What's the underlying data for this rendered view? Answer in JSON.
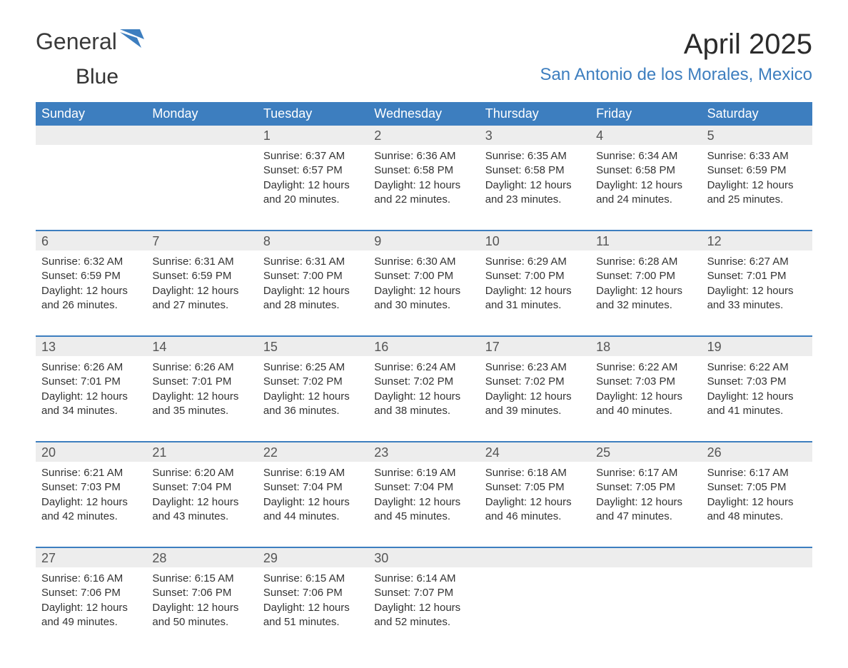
{
  "brand": {
    "part1": "General",
    "part2": "Blue",
    "text_color": "#3a3a3a",
    "accent_color": "#3d7ebf"
  },
  "title": "April 2025",
  "location": "San Antonio de los Morales, Mexico",
  "colors": {
    "header_bg": "#3d7ebf",
    "header_text": "#ffffff",
    "daynum_bg": "#ededed",
    "row_border": "#3d7ebf",
    "body_text": "#333333",
    "background": "#ffffff"
  },
  "typography": {
    "title_fontsize": 40,
    "location_fontsize": 24,
    "dow_fontsize": 18,
    "daynum_fontsize": 18,
    "cell_fontsize": 15,
    "font_family": "Arial"
  },
  "days_of_week": [
    "Sunday",
    "Monday",
    "Tuesday",
    "Wednesday",
    "Thursday",
    "Friday",
    "Saturday"
  ],
  "labels": {
    "sunrise": "Sunrise:",
    "sunset": "Sunset:",
    "daylight": "Daylight:"
  },
  "weeks": [
    {
      "cells": [
        {
          "day": "",
          "sunrise": "",
          "sunset": "",
          "daylight": ""
        },
        {
          "day": "",
          "sunrise": "",
          "sunset": "",
          "daylight": ""
        },
        {
          "day": "1",
          "sunrise": "6:37 AM",
          "sunset": "6:57 PM",
          "daylight": "12 hours and 20 minutes."
        },
        {
          "day": "2",
          "sunrise": "6:36 AM",
          "sunset": "6:58 PM",
          "daylight": "12 hours and 22 minutes."
        },
        {
          "day": "3",
          "sunrise": "6:35 AM",
          "sunset": "6:58 PM",
          "daylight": "12 hours and 23 minutes."
        },
        {
          "day": "4",
          "sunrise": "6:34 AM",
          "sunset": "6:58 PM",
          "daylight": "12 hours and 24 minutes."
        },
        {
          "day": "5",
          "sunrise": "6:33 AM",
          "sunset": "6:59 PM",
          "daylight": "12 hours and 25 minutes."
        }
      ]
    },
    {
      "cells": [
        {
          "day": "6",
          "sunrise": "6:32 AM",
          "sunset": "6:59 PM",
          "daylight": "12 hours and 26 minutes."
        },
        {
          "day": "7",
          "sunrise": "6:31 AM",
          "sunset": "6:59 PM",
          "daylight": "12 hours and 27 minutes."
        },
        {
          "day": "8",
          "sunrise": "6:31 AM",
          "sunset": "7:00 PM",
          "daylight": "12 hours and 28 minutes."
        },
        {
          "day": "9",
          "sunrise": "6:30 AM",
          "sunset": "7:00 PM",
          "daylight": "12 hours and 30 minutes."
        },
        {
          "day": "10",
          "sunrise": "6:29 AM",
          "sunset": "7:00 PM",
          "daylight": "12 hours and 31 minutes."
        },
        {
          "day": "11",
          "sunrise": "6:28 AM",
          "sunset": "7:00 PM",
          "daylight": "12 hours and 32 minutes."
        },
        {
          "day": "12",
          "sunrise": "6:27 AM",
          "sunset": "7:01 PM",
          "daylight": "12 hours and 33 minutes."
        }
      ]
    },
    {
      "cells": [
        {
          "day": "13",
          "sunrise": "6:26 AM",
          "sunset": "7:01 PM",
          "daylight": "12 hours and 34 minutes."
        },
        {
          "day": "14",
          "sunrise": "6:26 AM",
          "sunset": "7:01 PM",
          "daylight": "12 hours and 35 minutes."
        },
        {
          "day": "15",
          "sunrise": "6:25 AM",
          "sunset": "7:02 PM",
          "daylight": "12 hours and 36 minutes."
        },
        {
          "day": "16",
          "sunrise": "6:24 AM",
          "sunset": "7:02 PM",
          "daylight": "12 hours and 38 minutes."
        },
        {
          "day": "17",
          "sunrise": "6:23 AM",
          "sunset": "7:02 PM",
          "daylight": "12 hours and 39 minutes."
        },
        {
          "day": "18",
          "sunrise": "6:22 AM",
          "sunset": "7:03 PM",
          "daylight": "12 hours and 40 minutes."
        },
        {
          "day": "19",
          "sunrise": "6:22 AM",
          "sunset": "7:03 PM",
          "daylight": "12 hours and 41 minutes."
        }
      ]
    },
    {
      "cells": [
        {
          "day": "20",
          "sunrise": "6:21 AM",
          "sunset": "7:03 PM",
          "daylight": "12 hours and 42 minutes."
        },
        {
          "day": "21",
          "sunrise": "6:20 AM",
          "sunset": "7:04 PM",
          "daylight": "12 hours and 43 minutes."
        },
        {
          "day": "22",
          "sunrise": "6:19 AM",
          "sunset": "7:04 PM",
          "daylight": "12 hours and 44 minutes."
        },
        {
          "day": "23",
          "sunrise": "6:19 AM",
          "sunset": "7:04 PM",
          "daylight": "12 hours and 45 minutes."
        },
        {
          "day": "24",
          "sunrise": "6:18 AM",
          "sunset": "7:05 PM",
          "daylight": "12 hours and 46 minutes."
        },
        {
          "day": "25",
          "sunrise": "6:17 AM",
          "sunset": "7:05 PM",
          "daylight": "12 hours and 47 minutes."
        },
        {
          "day": "26",
          "sunrise": "6:17 AM",
          "sunset": "7:05 PM",
          "daylight": "12 hours and 48 minutes."
        }
      ]
    },
    {
      "cells": [
        {
          "day": "27",
          "sunrise": "6:16 AM",
          "sunset": "7:06 PM",
          "daylight": "12 hours and 49 minutes."
        },
        {
          "day": "28",
          "sunrise": "6:15 AM",
          "sunset": "7:06 PM",
          "daylight": "12 hours and 50 minutes."
        },
        {
          "day": "29",
          "sunrise": "6:15 AM",
          "sunset": "7:06 PM",
          "daylight": "12 hours and 51 minutes."
        },
        {
          "day": "30",
          "sunrise": "6:14 AM",
          "sunset": "7:07 PM",
          "daylight": "12 hours and 52 minutes."
        },
        {
          "day": "",
          "sunrise": "",
          "sunset": "",
          "daylight": ""
        },
        {
          "day": "",
          "sunrise": "",
          "sunset": "",
          "daylight": ""
        },
        {
          "day": "",
          "sunrise": "",
          "sunset": "",
          "daylight": ""
        }
      ]
    }
  ]
}
